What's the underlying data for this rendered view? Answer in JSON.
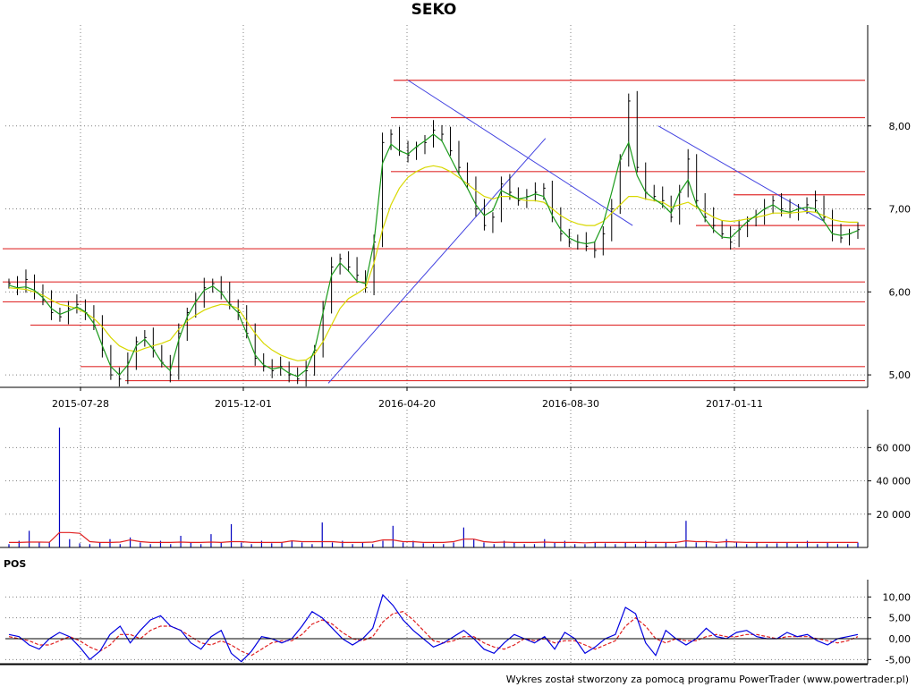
{
  "title": "SEKO",
  "footer": "Wykres został stworzony za pomocą programu PowerTrader (www.powertrader.pl)",
  "colors": {
    "ohlc": "#000000",
    "ma_short": "#1a9a1a",
    "ma_long": "#d8d800",
    "support_lines": "#e03030",
    "trend_lines": "#4040e0",
    "volume_bars": "#0000c0",
    "volume_ma": "#e02020",
    "pos_main": "#0000e0",
    "pos_signal": "#e02020",
    "grid": "#808080"
  },
  "chart_data": [
    {
      "type": "line",
      "panel": "price",
      "title": "SEKO",
      "x_tick_labels": [
        "2015-07-28",
        "2015-12-01",
        "2016-04-20",
        "2016-08-30",
        "2017-01-11"
      ],
      "y_tick_labels": [
        "5,00",
        "6,00",
        "7,00",
        "8,00"
      ],
      "ylim": [
        4.85,
        9.0
      ],
      "grid": true,
      "series": [
        {
          "style": "close",
          "values": [
            6.1,
            6.05,
            6.15,
            6.0,
            5.9,
            5.75,
            5.7,
            5.8,
            5.85,
            5.75,
            5.6,
            5.3,
            5.0,
            4.95,
            5.15,
            5.4,
            5.45,
            5.3,
            5.15,
            5.0,
            5.5,
            5.75,
            5.9,
            6.05,
            6.1,
            6.0,
            5.85,
            5.75,
            5.5,
            5.2,
            5.1,
            5.05,
            5.1,
            5.0,
            4.95,
            5.05,
            5.3,
            5.8,
            6.3,
            6.4,
            6.3,
            6.2,
            6.05,
            6.6,
            7.8,
            7.9,
            7.7,
            7.65,
            7.75,
            7.8,
            7.95,
            7.9,
            7.7,
            7.5,
            7.3,
            7.0,
            6.8,
            6.9,
            7.3,
            7.2,
            7.1,
            7.15,
            7.2,
            7.25,
            6.9,
            6.7,
            6.6,
            6.6,
            6.55,
            6.5,
            6.7,
            7.0,
            7.6,
            8.3,
            7.5,
            7.2,
            7.15,
            7.1,
            6.9,
            7.2,
            7.6,
            7.1,
            6.9,
            6.8,
            6.7,
            6.6,
            6.75,
            6.85,
            6.9,
            7.0,
            7.1,
            7.0,
            6.95,
            7.0,
            7.05,
            7.1,
            6.9,
            6.7,
            6.65,
            6.7,
            6.75
          ]
        },
        {
          "style": "moving-average-short",
          "values": [
            6.08,
            6.05,
            6.06,
            6.02,
            5.93,
            5.8,
            5.73,
            5.77,
            5.82,
            5.76,
            5.62,
            5.35,
            5.1,
            5.0,
            5.12,
            5.35,
            5.43,
            5.31,
            5.15,
            5.05,
            5.42,
            5.7,
            5.88,
            6.02,
            6.07,
            5.99,
            5.85,
            5.75,
            5.5,
            5.24,
            5.12,
            5.07,
            5.09,
            5.02,
            4.98,
            5.06,
            5.3,
            5.75,
            6.2,
            6.35,
            6.25,
            6.13,
            6.1,
            6.6,
            7.55,
            7.78,
            7.7,
            7.66,
            7.75,
            7.82,
            7.9,
            7.82,
            7.62,
            7.42,
            7.25,
            7.05,
            6.92,
            6.98,
            7.22,
            7.17,
            7.12,
            7.14,
            7.18,
            7.15,
            6.92,
            6.75,
            6.65,
            6.6,
            6.58,
            6.6,
            6.82,
            7.2,
            7.6,
            7.8,
            7.4,
            7.2,
            7.12,
            7.05,
            6.95,
            7.2,
            7.35,
            7.05,
            6.88,
            6.75,
            6.66,
            6.65,
            6.75,
            6.85,
            6.92,
            7.0,
            7.05,
            6.98,
            6.96,
            7.0,
            7.02,
            7.0,
            6.85,
            6.7,
            6.68,
            6.7,
            6.74
          ]
        },
        {
          "style": "moving-average-long",
          "values": [
            6.05,
            6.04,
            6.03,
            6.0,
            5.96,
            5.9,
            5.85,
            5.83,
            5.8,
            5.75,
            5.68,
            5.58,
            5.45,
            5.35,
            5.3,
            5.28,
            5.32,
            5.35,
            5.38,
            5.42,
            5.55,
            5.65,
            5.72,
            5.78,
            5.82,
            5.85,
            5.84,
            5.8,
            5.65,
            5.5,
            5.38,
            5.3,
            5.24,
            5.2,
            5.17,
            5.18,
            5.25,
            5.4,
            5.6,
            5.8,
            5.92,
            5.98,
            6.05,
            6.35,
            6.75,
            7.05,
            7.25,
            7.38,
            7.45,
            7.5,
            7.52,
            7.5,
            7.45,
            7.38,
            7.3,
            7.22,
            7.15,
            7.12,
            7.15,
            7.15,
            7.12,
            7.1,
            7.1,
            7.08,
            7.0,
            6.92,
            6.86,
            6.82,
            6.8,
            6.8,
            6.85,
            6.95,
            7.05,
            7.15,
            7.15,
            7.12,
            7.1,
            7.08,
            7.02,
            7.05,
            7.08,
            7.02,
            6.96,
            6.9,
            6.86,
            6.85,
            6.86,
            6.88,
            6.9,
            6.92,
            6.95,
            6.95,
            6.95,
            6.96,
            6.97,
            6.96,
            6.92,
            6.87,
            6.85,
            6.84,
            6.84
          ]
        }
      ],
      "horizontal_levels": [
        8.55,
        8.1,
        7.45,
        7.17,
        6.8,
        6.52,
        6.12,
        5.88,
        5.6,
        5.1,
        4.93
      ],
      "trend_lines": [
        {
          "from": [
            "2016-04-20",
            8.55
          ],
          "to": [
            "2016-10-20",
            6.8
          ]
        },
        {
          "from": [
            "2016-02-15",
            4.9
          ],
          "to": [
            "2016-08-10",
            7.85
          ]
        },
        {
          "from": [
            "2016-11-10",
            8.0
          ],
          "to": [
            "2017-03-25",
            6.85
          ]
        }
      ]
    },
    {
      "type": "bar",
      "panel": "volume",
      "y_tick_labels": [
        "20 000",
        "40 000",
        "60 000"
      ],
      "ylim": [
        0,
        72000
      ],
      "grid": true,
      "series": [
        {
          "style": "volume",
          "values": [
            2000,
            4000,
            10000,
            3000,
            3000,
            72000,
            5000,
            2500,
            2000,
            3000,
            5000,
            2000,
            6000,
            3000,
            2000,
            4000,
            2000,
            7000,
            3000,
            2000,
            8000,
            3000,
            14000,
            3000,
            2000,
            4000,
            2500,
            3000,
            4000,
            3000,
            2000,
            15000,
            3000,
            4000,
            2000,
            3000,
            2000,
            4000,
            13000,
            3000,
            4000,
            2500,
            2000,
            2000,
            3000,
            12000,
            5000,
            3000,
            2000,
            4000,
            3000,
            2000,
            2000,
            5000,
            3000,
            4000,
            2000,
            2000,
            3000,
            2500,
            2000,
            3000,
            2000,
            4000,
            2000,
            3000,
            2000,
            16000,
            3000,
            4000,
            2000,
            5000,
            3000,
            2000,
            3000,
            2000,
            2500,
            3000,
            2000,
            4000,
            2000,
            3000,
            2000,
            2000,
            3000
          ]
        },
        {
          "style": "volume-average",
          "values": [
            3000,
            3000,
            3200,
            3200,
            3100,
            9000,
            9000,
            8500,
            3500,
            3000,
            3000,
            3200,
            4500,
            3500,
            3000,
            3000,
            3000,
            3200,
            3000,
            3000,
            3200,
            3000,
            3500,
            3500,
            3000,
            3000,
            3000,
            3000,
            4000,
            3500,
            3500,
            3500,
            3500,
            3000,
            3000,
            3000,
            3200,
            4500,
            4500,
            3500,
            3500,
            3000,
            3000,
            3000,
            3500,
            5000,
            5000,
            3500,
            3000,
            3200,
            3000,
            3000,
            3000,
            3200,
            3000,
            3000,
            3000,
            2800,
            3000,
            3000,
            3000,
            3000,
            3000,
            3000,
            3000,
            3000,
            3000,
            4000,
            3500,
            3500,
            3000,
            3500,
            3200,
            3000,
            3000,
            3000,
            3000,
            3000,
            3000,
            3000,
            3000,
            3000,
            3000,
            3000,
            3000
          ]
        }
      ]
    },
    {
      "type": "line",
      "panel": "indicator",
      "title": "POS",
      "y_tick_labels": [
        "-5,00",
        "0,00",
        "5,00",
        "10,00"
      ],
      "ylim": [
        -6,
        12
      ],
      "grid": true,
      "series": [
        {
          "style": "pos",
          "values": [
            1.0,
            0.5,
            -1.5,
            -2.5,
            0.0,
            1.5,
            0.5,
            -2.0,
            -5.0,
            -3.0,
            1.0,
            3.0,
            -1.0,
            2.0,
            4.5,
            5.5,
            3.0,
            2.0,
            -1.0,
            -2.5,
            0.5,
            2.0,
            -3.5,
            -5.5,
            -3.0,
            0.5,
            0.0,
            -1.0,
            0.0,
            3.0,
            6.5,
            5.0,
            2.5,
            0.0,
            -1.5,
            0.0,
            2.5,
            10.5,
            8.0,
            4.5,
            2.0,
            0.0,
            -2.0,
            -1.0,
            0.5,
            2.0,
            0.0,
            -2.5,
            -3.5,
            -1.0,
            1.0,
            0.0,
            -1.0,
            0.5,
            -2.5,
            1.5,
            0.0,
            -3.5,
            -2.0,
            0.0,
            1.0,
            7.5,
            6.0,
            -1.0,
            -4.0,
            2.0,
            0.0,
            -1.5,
            0.0,
            2.5,
            0.5,
            0.0,
            1.5,
            2.0,
            0.5,
            0.0,
            0.0,
            1.5,
            0.5,
            1.0,
            -0.5,
            -1.5,
            0.0,
            0.5,
            1.0
          ]
        },
        {
          "style": "pos-signal",
          "values": [
            0.5,
            0.0,
            -0.5,
            -1.5,
            -1.5,
            -0.5,
            0.5,
            -0.5,
            -2.0,
            -3.0,
            -1.5,
            1.0,
            1.0,
            0.0,
            2.0,
            3.0,
            3.0,
            2.0,
            0.5,
            -1.0,
            -1.5,
            -0.5,
            -1.5,
            -3.0,
            -4.0,
            -2.5,
            -1.0,
            -0.5,
            -0.5,
            1.0,
            3.5,
            4.5,
            3.5,
            1.5,
            0.0,
            -0.5,
            0.5,
            4.0,
            6.0,
            6.5,
            4.5,
            2.0,
            -0.5,
            -1.0,
            -0.5,
            0.5,
            0.5,
            -1.0,
            -2.0,
            -2.5,
            -1.5,
            0.0,
            -0.5,
            0.0,
            -1.0,
            -0.5,
            -0.5,
            -1.5,
            -2.5,
            -1.5,
            -0.5,
            3.0,
            5.0,
            3.0,
            0.0,
            -1.0,
            0.0,
            -0.5,
            -0.5,
            0.5,
            1.0,
            0.5,
            0.5,
            1.0,
            1.0,
            0.5,
            0.0,
            0.5,
            0.5,
            0.5,
            0.0,
            -0.5,
            -1.0,
            -0.5,
            0.5
          ]
        }
      ]
    }
  ]
}
